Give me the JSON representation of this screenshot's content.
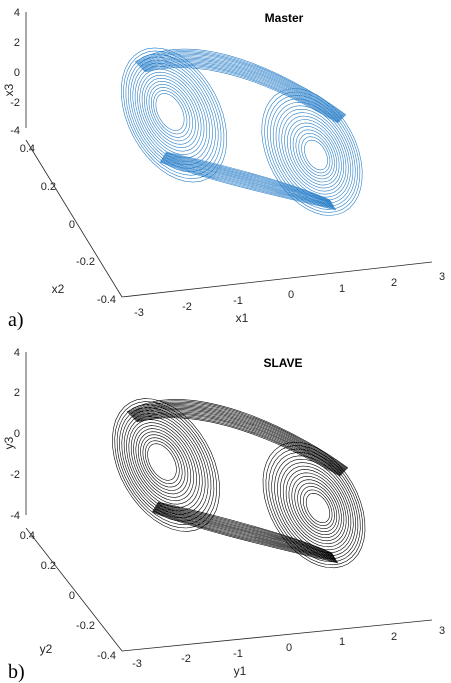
{
  "chart_data": [
    {
      "type": "line",
      "panel_label": "a)",
      "title": "Master",
      "xlabel": "x1",
      "ylabel": "x2",
      "zlabel": "x3",
      "xticks": [
        "-3",
        "-2",
        "-1",
        "0",
        "1",
        "2",
        "3"
      ],
      "yticks": [
        "-0.4",
        "-0.2",
        "0",
        "0.2",
        "0.4"
      ],
      "zticks": [
        "-4",
        "-2",
        "0",
        "2",
        "4"
      ],
      "xlim": [
        -3,
        3
      ],
      "ylim": [
        -0.4,
        0.4
      ],
      "zlim": [
        -4,
        4
      ],
      "series": [
        {
          "color": "#2a7fc9",
          "attractor": "double-scroll",
          "left_scroll_center": {
            "x": -2.1,
            "y": 0.22,
            "z": -2.3
          },
          "right_scroll_center": {
            "x": 1.4,
            "y": -0.1,
            "z": -3.0
          }
        }
      ]
    },
    {
      "type": "line",
      "panel_label": "b)",
      "title": "SLAVE",
      "xlabel": "y1",
      "ylabel": "y2",
      "zlabel": "y3",
      "xticks": [
        "-3",
        "-2",
        "-1",
        "0",
        "1",
        "2",
        "3"
      ],
      "yticks": [
        "-0.4",
        "-0.2",
        "0",
        "0.2",
        "0.4"
      ],
      "zticks": [
        "-4",
        "-2",
        "0",
        "2",
        "4"
      ],
      "xlim": [
        -3,
        3
      ],
      "ylim": [
        -0.4,
        0.4
      ],
      "zlim": [
        -4,
        4
      ],
      "series": [
        {
          "color": "#000000",
          "attractor": "double-scroll",
          "left_scroll_center": {
            "x": -2.1,
            "y": 0.22,
            "z": -1.5
          },
          "right_scroll_center": {
            "x": 1.4,
            "y": -0.1,
            "z": -3.8
          }
        }
      ]
    }
  ]
}
